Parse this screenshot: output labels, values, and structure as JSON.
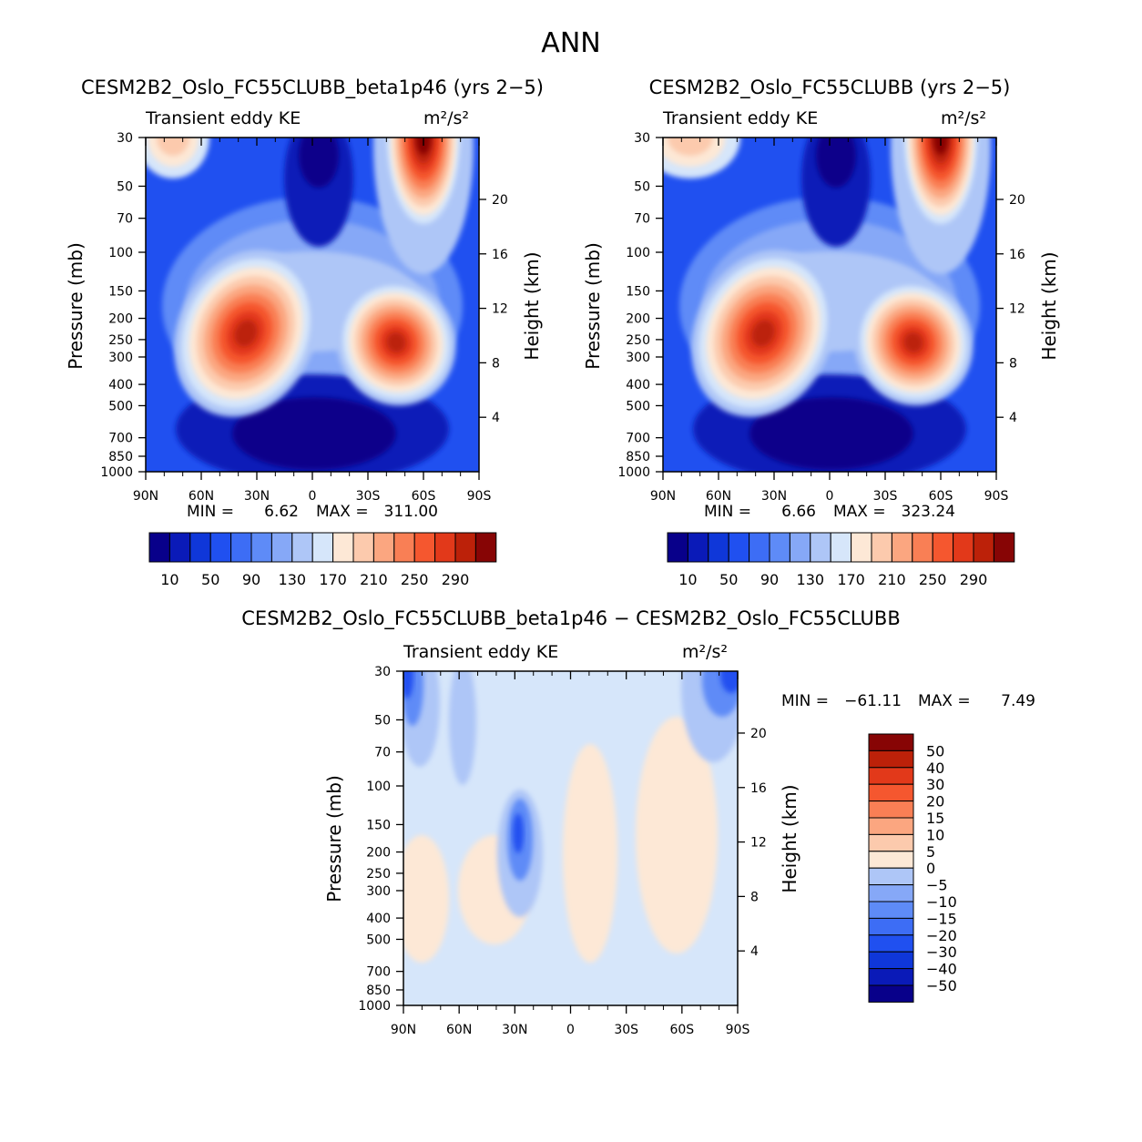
{
  "chart_data": {
    "type": "heatmap",
    "title": "ANN",
    "colors": {
      "abs": [
        "#08008a",
        "#0a1ab8",
        "#0f37d9",
        "#2050f0",
        "#3d6df5",
        "#5e8bf7",
        "#86a8f7",
        "#aec6f7",
        "#d6e6fa",
        "#fde8d6",
        "#fccaad",
        "#fba680",
        "#f97f55",
        "#f5572f",
        "#e2391a",
        "#bc2109",
        "#870505"
      ],
      "diff": [
        "#08008a",
        "#0a1ab8",
        "#0f37d9",
        "#2050f0",
        "#3d6df5",
        "#5e8bf7",
        "#86a8f7",
        "#aec6f7",
        "#d6e6fa",
        "#fde8d6",
        "#fccaad",
        "#fba680",
        "#f97f55",
        "#f5572f",
        "#e2391a",
        "#bc2109",
        "#870505"
      ]
    },
    "panels": [
      {
        "id": "top-left",
        "title": "CESM2B2_Oslo_FC55CLUBB_beta1p46 (yrs 2−5)",
        "subtitle_left": "Transient eddy KE",
        "units": "m²/s²",
        "ylabel_left": "Pressure (mb)",
        "ylabel_right": "Height (km)",
        "xticks": [
          "90N",
          "60N",
          "30N",
          "0",
          "30S",
          "60S",
          "90S"
        ],
        "yticks_pressure": [
          "30",
          "50",
          "70",
          "100",
          "150",
          "200",
          "250",
          "300",
          "400",
          "500",
          "700",
          "850",
          "1000"
        ],
        "yticks_height": [
          "4",
          "8",
          "12",
          "16",
          "20"
        ],
        "min_label": "MIN =",
        "min_value": "6.62",
        "max_label": "MAX =",
        "max_value": "311.00",
        "field": "abs",
        "colorbar_labels": [
          "10",
          "50",
          "90",
          "130",
          "170",
          "210",
          "250",
          "290"
        ]
      },
      {
        "id": "top-right",
        "title": "CESM2B2_Oslo_FC55CLUBB (yrs 2−5)",
        "subtitle_left": "Transient eddy KE",
        "units": "m²/s²",
        "ylabel_left": "Pressure (mb)",
        "ylabel_right": "Height (km)",
        "xticks": [
          "90N",
          "60N",
          "30N",
          "0",
          "30S",
          "60S",
          "90S"
        ],
        "yticks_pressure": [
          "30",
          "50",
          "70",
          "100",
          "150",
          "200",
          "250",
          "300",
          "400",
          "500",
          "700",
          "850",
          "1000"
        ],
        "yticks_height": [
          "4",
          "8",
          "12",
          "16",
          "20"
        ],
        "min_label": "MIN =",
        "min_value": "6.66",
        "max_label": "MAX =",
        "max_value": "323.24",
        "field": "abs2",
        "colorbar_labels": [
          "10",
          "50",
          "90",
          "130",
          "170",
          "210",
          "250",
          "290"
        ]
      },
      {
        "id": "bottom",
        "title": "CESM2B2_Oslo_FC55CLUBB_beta1p46 − CESM2B2_Oslo_FC55CLUBB",
        "subtitle_left": "Transient eddy KE",
        "units": "m²/s²",
        "ylabel_left": "Pressure (mb)",
        "ylabel_right": "Height (km)",
        "xticks": [
          "90N",
          "60N",
          "30N",
          "0",
          "30S",
          "60S",
          "90S"
        ],
        "yticks_pressure": [
          "30",
          "50",
          "70",
          "100",
          "150",
          "200",
          "250",
          "300",
          "400",
          "500",
          "700",
          "850",
          "1000"
        ],
        "yticks_height": [
          "4",
          "8",
          "12",
          "16",
          "20"
        ],
        "min_label": "MIN =",
        "min_value": "−61.11",
        "max_label": "MAX =",
        "max_value": "7.49",
        "field": "diff",
        "colorbar_labels": [
          "50",
          "40",
          "30",
          "20",
          "15",
          "10",
          "5",
          "0",
          "−5",
          "−10",
          "−15",
          "−20",
          "−30",
          "−40",
          "−50"
        ]
      }
    ]
  }
}
